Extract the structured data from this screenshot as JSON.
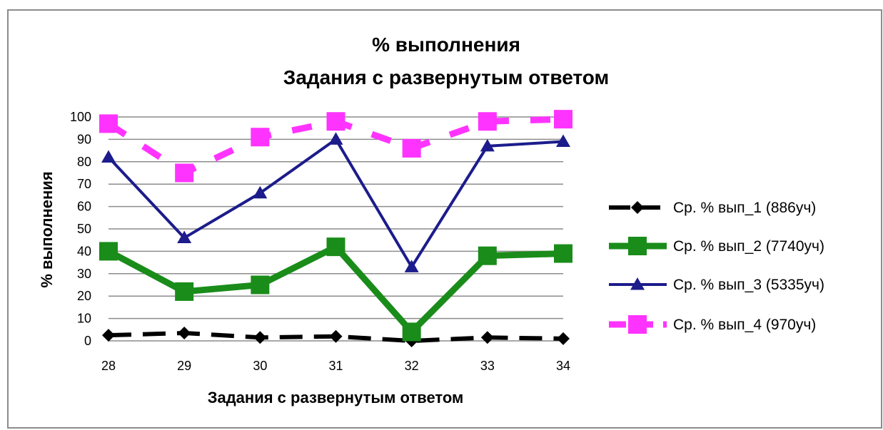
{
  "chart_data": {
    "type": "line",
    "title": "% выполнения",
    "subtitle": "Задания с развернутым ответом",
    "xlabel": "Задания с развернутым ответом",
    "ylabel": "% выполнения",
    "categories": [
      "28",
      "29",
      "30",
      "31",
      "32",
      "33",
      "34"
    ],
    "ylim": [
      0,
      100
    ],
    "yticks": [
      0,
      10,
      20,
      30,
      40,
      50,
      60,
      70,
      80,
      90,
      100
    ],
    "grid": true,
    "legend_position": "right",
    "series": [
      {
        "name": "Ср. % вып_1 (886уч)",
        "values": [
          2.5,
          3.5,
          1.5,
          2,
          0,
          1.5,
          1
        ],
        "color": "#000000",
        "marker": "diamond",
        "dash": "long-dash"
      },
      {
        "name": "Ср. % вып_2 (7740уч)",
        "values": [
          40,
          22,
          25,
          42,
          4,
          38,
          39
        ],
        "color": "#1a8c1a",
        "marker": "square",
        "dash": "solid"
      },
      {
        "name": "Ср. % вып_3 (5335уч)",
        "values": [
          82,
          46,
          66,
          90,
          33,
          87,
          89
        ],
        "color": "#1c1c8c",
        "marker": "triangle",
        "dash": "solid"
      },
      {
        "name": "Ср. % вып_4 (970уч)",
        "values": [
          97,
          75,
          91,
          98,
          86,
          98,
          99
        ],
        "color": "#ff33ff",
        "marker": "square",
        "dash": "dashed"
      }
    ]
  }
}
